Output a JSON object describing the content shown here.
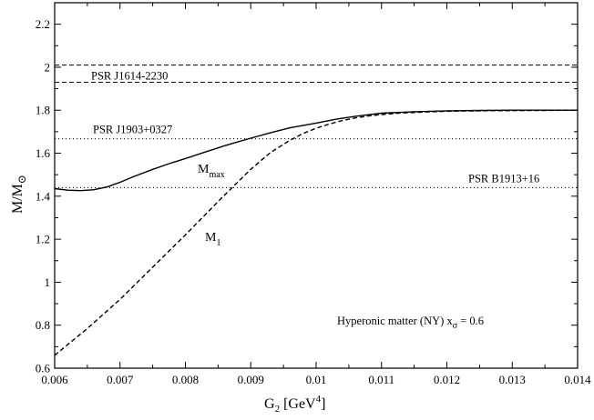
{
  "chart_data": {
    "type": "line",
    "xlabel": "G",
    "xlabel_sub": "2",
    "xlabel_unit": " [GeV",
    "xlabel_unit_sup": "4",
    "xlabel_unit_close": "]",
    "ylabel": "M/M",
    "ylabel_symbol": "⊙",
    "xlim": [
      0.006,
      0.014
    ],
    "ylim": [
      0.6,
      2.3
    ],
    "xticks": [
      0.006,
      0.007,
      0.008,
      0.009,
      0.01,
      0.011,
      0.012,
      0.013,
      0.014
    ],
    "xtick_labels": [
      "0.006",
      "0.007",
      "0.008",
      "0.009",
      "0.01",
      "0.011",
      "0.012",
      "0.013",
      "0.014"
    ],
    "yticks": [
      0.6,
      0.8,
      1.0,
      1.2,
      1.4,
      1.6,
      1.8,
      2.0,
      2.2
    ],
    "ytick_labels": [
      "0.6",
      "0.8",
      "1",
      "1.2",
      "1.4",
      "1.6",
      "1.8",
      "2",
      "2.2"
    ],
    "grid": false,
    "series": [
      {
        "name": "M",
        "name_sub": "max",
        "style": "solid",
        "x": [
          0.006,
          0.0062,
          0.0064,
          0.0066,
          0.0068,
          0.007,
          0.0072,
          0.0075,
          0.0078,
          0.008,
          0.0083,
          0.0086,
          0.009,
          0.0093,
          0.0096,
          0.01,
          0.0103,
          0.0106,
          0.011,
          0.0115,
          0.012,
          0.0125,
          0.013,
          0.0135,
          0.014
        ],
        "y": [
          1.435,
          1.428,
          1.426,
          1.43,
          1.443,
          1.465,
          1.49,
          1.525,
          1.556,
          1.575,
          1.605,
          1.635,
          1.67,
          1.695,
          1.718,
          1.74,
          1.758,
          1.772,
          1.786,
          1.793,
          1.797,
          1.799,
          1.8,
          1.8,
          1.8
        ]
      },
      {
        "name": "M",
        "name_sub": "1",
        "style": "dashed",
        "x": [
          0.006,
          0.0065,
          0.007,
          0.0075,
          0.008,
          0.0085,
          0.009,
          0.0093,
          0.0096,
          0.0098,
          0.01,
          0.0102,
          0.0104,
          0.0106,
          0.0108,
          0.011,
          0.0113,
          0.0116,
          0.012,
          0.0125,
          0.013,
          0.0135,
          0.014
        ],
        "y": [
          0.66,
          0.785,
          0.92,
          1.07,
          1.22,
          1.375,
          1.525,
          1.603,
          1.66,
          1.692,
          1.716,
          1.736,
          1.752,
          1.764,
          1.773,
          1.78,
          1.787,
          1.791,
          1.795,
          1.797,
          1.798,
          1.799,
          1.8
        ]
      }
    ],
    "reference_lines": [
      {
        "label": "PSR J1614-2230",
        "y": 2.01,
        "style": "dashed"
      },
      {
        "label": "",
        "y": 1.93,
        "style": "dashed"
      },
      {
        "label": "PSR J1903+0327",
        "y": 1.667,
        "style": "dotted"
      },
      {
        "label": "PSR B1913+16",
        "y": 1.44,
        "style": "dotted"
      }
    ],
    "annotation": {
      "text": "Hyperonic matter (NY)  x",
      "sub": "σ",
      "tail": " = 0.6"
    }
  }
}
